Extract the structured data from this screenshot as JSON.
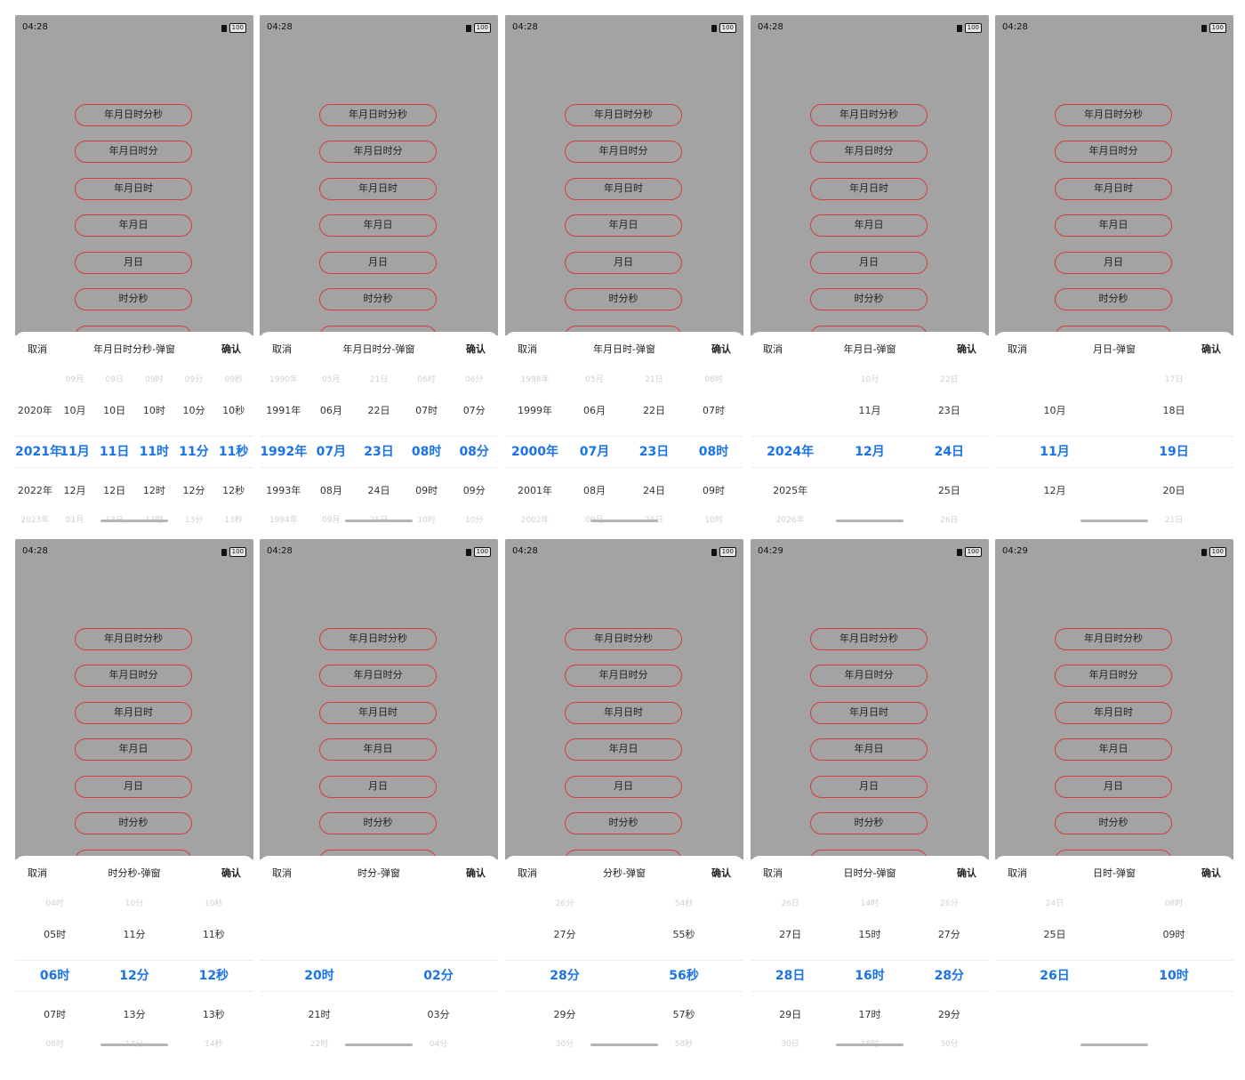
{
  "menu": [
    "年月日时分秒",
    "年月日时分",
    "年月日时",
    "年月日",
    "月日",
    "时分秒"
  ],
  "cancel_label": "取消",
  "confirm_label": "确认",
  "colors": {
    "selected": "#1a73e8",
    "button_border": "#d33c3c",
    "overlay": "#a3a3a3"
  },
  "screens": [
    {
      "time": "04:28",
      "battery": "100",
      "title": "年月日时分秒-弹窗",
      "columns": [
        [
          "",
          "2020年",
          "2021年",
          "2022年",
          "2023年"
        ],
        [
          "09月",
          "10月",
          "11月",
          "12月",
          "01月"
        ],
        [
          "09日",
          "10日",
          "11日",
          "12日",
          "13日"
        ],
        [
          "09时",
          "10时",
          "11时",
          "12时",
          "13时"
        ],
        [
          "09分",
          "10分",
          "11分",
          "12分",
          "13分"
        ],
        [
          "09秒",
          "10秒",
          "11秒",
          "12秒",
          "13秒"
        ]
      ]
    },
    {
      "time": "04:28",
      "battery": "100",
      "title": "年月日时分-弹窗",
      "columns": [
        [
          "1990年",
          "1991年",
          "1992年",
          "1993年",
          "1994年"
        ],
        [
          "05月",
          "06月",
          "07月",
          "08月",
          "09月"
        ],
        [
          "21日",
          "22日",
          "23日",
          "24日",
          "25日"
        ],
        [
          "06时",
          "07时",
          "08时",
          "09时",
          "10时"
        ],
        [
          "06分",
          "07分",
          "08分",
          "09分",
          "10分"
        ]
      ]
    },
    {
      "time": "04:28",
      "battery": "100",
      "title": "年月日时-弹窗",
      "columns": [
        [
          "1998年",
          "1999年",
          "2000年",
          "2001年",
          "2002年"
        ],
        [
          "05月",
          "06月",
          "07月",
          "08月",
          "09月"
        ],
        [
          "21日",
          "22日",
          "23日",
          "24日",
          "25日"
        ],
        [
          "06时",
          "07时",
          "08时",
          "09时",
          "10时"
        ]
      ]
    },
    {
      "time": "04:28",
      "battery": "100",
      "title": "年月日-弹窗",
      "columns": [
        [
          "",
          "",
          "2024年",
          "2025年",
          "2026年"
        ],
        [
          "10月",
          "11月",
          "12月",
          "",
          ""
        ],
        [
          "22日",
          "23日",
          "24日",
          "25日",
          "26日"
        ]
      ]
    },
    {
      "time": "04:28",
      "battery": "100",
      "title": "月日-弹窗",
      "columns": [
        [
          "",
          "10月",
          "11月",
          "12月",
          ""
        ],
        [
          "17日",
          "18日",
          "19日",
          "20日",
          "21日"
        ]
      ]
    },
    {
      "time": "04:28",
      "battery": "100",
      "title": "时分秒-弹窗",
      "columns": [
        [
          "04时",
          "05时",
          "06时",
          "07时",
          "08时"
        ],
        [
          "10分",
          "11分",
          "12分",
          "13分",
          "14分"
        ],
        [
          "10秒",
          "11秒",
          "12秒",
          "13秒",
          "14秒"
        ]
      ]
    },
    {
      "time": "04:28",
      "battery": "100",
      "title": "时分-弹窗",
      "columns": [
        [
          "",
          "",
          "20时",
          "21时",
          "22时"
        ],
        [
          "",
          "",
          "02分",
          "03分",
          "04分"
        ]
      ]
    },
    {
      "time": "04:28",
      "battery": "100",
      "title": "分秒-弹窗",
      "columns": [
        [
          "26分",
          "27分",
          "28分",
          "29分",
          "30分"
        ],
        [
          "54秒",
          "55秒",
          "56秒",
          "57秒",
          "58秒"
        ]
      ]
    },
    {
      "time": "04:29",
      "battery": "100",
      "title": "日时分-弹窗",
      "columns": [
        [
          "26日",
          "27日",
          "28日",
          "29日",
          "30日"
        ],
        [
          "14时",
          "15时",
          "16时",
          "17时",
          "18时"
        ],
        [
          "26分",
          "27分",
          "28分",
          "29分",
          "30分"
        ]
      ]
    },
    {
      "time": "04:29",
      "battery": "100",
      "title": "日时-弹窗",
      "columns": [
        [
          "24日",
          "25日",
          "26日",
          "",
          ""
        ],
        [
          "08时",
          "09时",
          "10时",
          "",
          ""
        ]
      ]
    }
  ]
}
